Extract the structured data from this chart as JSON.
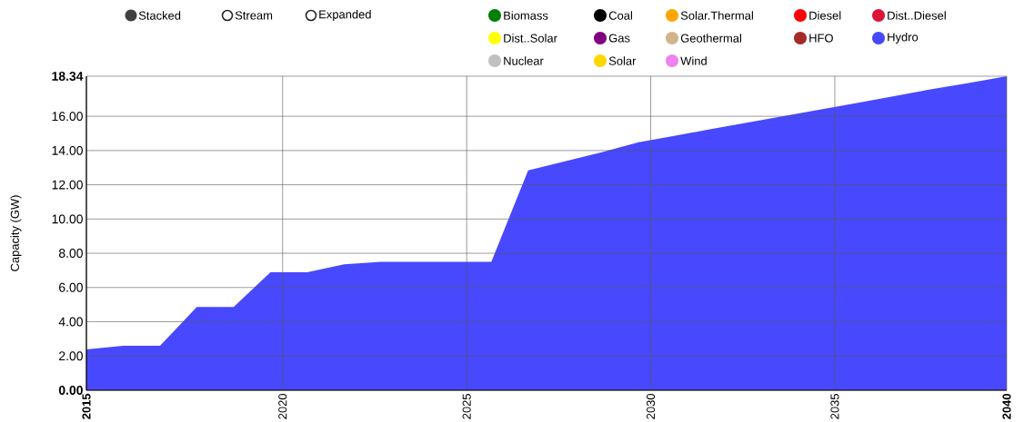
{
  "chart_data": {
    "type": "area",
    "stacked": true,
    "ylabel": "Capacity (GW)",
    "x": [
      2014.67,
      2015.67,
      2016.67,
      2017.67,
      2018.67,
      2019.67,
      2020.67,
      2021.67,
      2022.67,
      2023.67,
      2024.67,
      2025.67,
      2026.67,
      2027.67,
      2028.67,
      2029.67,
      2030.67,
      2031.67,
      2032.67,
      2033.67,
      2034.67,
      2035.67,
      2036.67,
      2037.67,
      2038.67,
      2039.67
    ],
    "series": [
      {
        "name": "Biomass",
        "color": "#008000",
        "values": [
          null,
          null,
          null,
          null,
          null,
          null,
          null,
          null,
          null,
          null,
          null,
          null,
          null,
          null,
          null,
          null,
          null,
          null,
          null,
          null,
          null,
          null,
          null,
          null,
          null,
          null
        ]
      },
      {
        "name": "Coal",
        "color": "#000000",
        "values": [
          null,
          null,
          null,
          null,
          null,
          null,
          null,
          null,
          null,
          null,
          null,
          null,
          null,
          null,
          null,
          null,
          null,
          null,
          null,
          null,
          null,
          null,
          null,
          null,
          null,
          null
        ]
      },
      {
        "name": "Solar.Thermal",
        "color": "#ffa500",
        "values": [
          null,
          null,
          null,
          null,
          null,
          null,
          null,
          null,
          null,
          null,
          null,
          null,
          null,
          null,
          null,
          null,
          null,
          null,
          null,
          null,
          null,
          null,
          null,
          null,
          null,
          null
        ]
      },
      {
        "name": "Diesel",
        "color": "#ff0000",
        "values": [
          null,
          null,
          null,
          null,
          null,
          null,
          null,
          null,
          null,
          null,
          null,
          null,
          null,
          null,
          null,
          null,
          null,
          null,
          null,
          null,
          null,
          null,
          null,
          null,
          null,
          null
        ]
      },
      {
        "name": "Dist..Diesel",
        "color": "#dc143c",
        "values": [
          null,
          null,
          null,
          null,
          null,
          null,
          null,
          null,
          null,
          null,
          null,
          null,
          null,
          null,
          null,
          null,
          null,
          null,
          null,
          null,
          null,
          null,
          null,
          null,
          null,
          null
        ]
      },
      {
        "name": "Dist..Solar",
        "color": "#ffff00",
        "values": [
          null,
          null,
          null,
          null,
          null,
          null,
          null,
          null,
          null,
          null,
          null,
          null,
          null,
          null,
          null,
          null,
          null,
          null,
          null,
          null,
          null,
          null,
          null,
          null,
          null,
          null
        ]
      },
      {
        "name": "Gas",
        "color": "#800080",
        "values": [
          null,
          null,
          null,
          null,
          null,
          null,
          null,
          null,
          null,
          null,
          null,
          null,
          null,
          null,
          null,
          null,
          null,
          null,
          null,
          null,
          null,
          null,
          null,
          null,
          null,
          null
        ]
      },
      {
        "name": "Geothermal",
        "color": "#d2b48c",
        "values": [
          null,
          null,
          null,
          null,
          null,
          null,
          null,
          null,
          null,
          null,
          null,
          null,
          null,
          null,
          null,
          null,
          null,
          null,
          null,
          null,
          null,
          null,
          null,
          null,
          null,
          null
        ]
      },
      {
        "name": "HFO",
        "color": "#a52a2a",
        "values": [
          null,
          null,
          null,
          null,
          null,
          null,
          null,
          null,
          null,
          null,
          null,
          null,
          null,
          null,
          null,
          null,
          null,
          null,
          null,
          null,
          null,
          null,
          null,
          null,
          null,
          null
        ]
      },
      {
        "name": "Hydro",
        "color": "#4848ff",
        "values": [
          2.38,
          2.6,
          2.6,
          4.86,
          4.86,
          6.89,
          6.89,
          7.36,
          7.5,
          7.5,
          7.5,
          7.5,
          12.84,
          13.37,
          13.9,
          14.48,
          14.87,
          15.26,
          15.65,
          16.03,
          16.42,
          16.8,
          17.2,
          17.6,
          17.95,
          18.34
        ]
      },
      {
        "name": "Nuclear",
        "color": "#c0c0c0",
        "values": [
          null,
          null,
          null,
          null,
          null,
          null,
          null,
          null,
          null,
          null,
          null,
          null,
          null,
          null,
          null,
          null,
          null,
          null,
          null,
          null,
          null,
          null,
          null,
          null,
          null,
          null
        ]
      },
      {
        "name": "Solar",
        "color": "#ffd700",
        "values": [
          null,
          null,
          null,
          null,
          null,
          null,
          null,
          null,
          null,
          null,
          null,
          null,
          null,
          null,
          null,
          null,
          null,
          null,
          null,
          null,
          null,
          null,
          null,
          null,
          null,
          null
        ]
      },
      {
        "name": "Wind",
        "color": "#ee82ee",
        "values": [
          null,
          null,
          null,
          null,
          null,
          null,
          null,
          null,
          null,
          null,
          null,
          null,
          null,
          null,
          null,
          null,
          null,
          null,
          null,
          null,
          null,
          null,
          null,
          null,
          null,
          null
        ]
      }
    ],
    "xlim": [
      2014.67,
      2039.67
    ],
    "xticks": [
      {
        "value": 2014.67,
        "label": "2015"
      },
      2020,
      2025,
      2030,
      2035,
      {
        "value": 2039.67,
        "label": "2040"
      }
    ],
    "ylim": [
      0,
      18.34
    ],
    "yticks": [
      {
        "value": 0,
        "label": "0.00"
      },
      {
        "value": 2,
        "label": "2.00"
      },
      {
        "value": 4,
        "label": "4.00"
      },
      {
        "value": 6,
        "label": "6.00"
      },
      {
        "value": 8,
        "label": "8.00"
      },
      {
        "value": 10,
        "label": "10.00"
      },
      {
        "value": 12,
        "label": "12.00"
      },
      {
        "value": 14,
        "label": "14.00"
      },
      {
        "value": 16,
        "label": "16.00"
      },
      {
        "value": 18.34,
        "label": "18.34"
      }
    ],
    "grid": true,
    "legend": "top right",
    "annotations": [
      "Stacked",
      "Stream",
      "Expanded"
    ]
  }
}
